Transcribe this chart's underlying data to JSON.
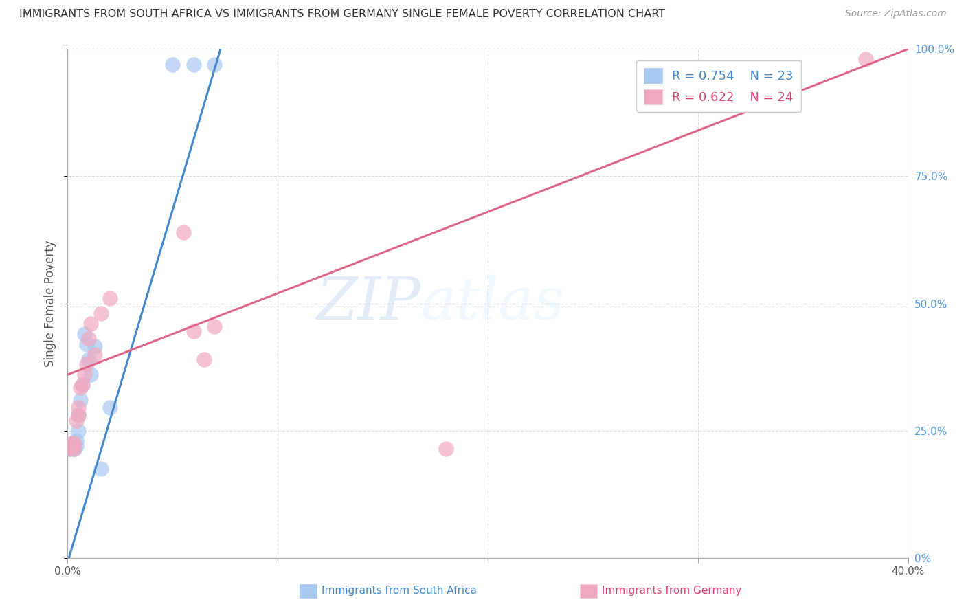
{
  "title": "IMMIGRANTS FROM SOUTH AFRICA VS IMMIGRANTS FROM GERMANY SINGLE FEMALE POVERTY CORRELATION CHART",
  "source": "Source: ZipAtlas.com",
  "ylabel": "Single Female Poverty",
  "legend_label_1": "Immigrants from South Africa",
  "legend_label_2": "Immigrants from Germany",
  "legend_r1": "R = 0.754",
  "legend_n1": "N = 23",
  "legend_r2": "R = 0.622",
  "legend_n2": "N = 24",
  "color_blue": "#a8c8f0",
  "color_pink": "#f0a8c0",
  "color_blue_line": "#4488cc",
  "color_pink_line": "#dd6688",
  "color_blue_text": "#4488cc",
  "color_pink_text": "#dd4477",
  "color_right_axis": "#5599dd",
  "xlim": [
    0.0,
    0.4
  ],
  "ylim": [
    0.0,
    1.0
  ],
  "south_africa_x": [
    0.001,
    0.001,
    0.002,
    0.002,
    0.003,
    0.003,
    0.003,
    0.004,
    0.004,
    0.005,
    0.005,
    0.006,
    0.007,
    0.008,
    0.009,
    0.01,
    0.011,
    0.013,
    0.016,
    0.02,
    0.05,
    0.06,
    0.07
  ],
  "south_africa_y": [
    0.215,
    0.22,
    0.215,
    0.225,
    0.215,
    0.22,
    0.225,
    0.22,
    0.23,
    0.25,
    0.28,
    0.31,
    0.34,
    0.44,
    0.42,
    0.39,
    0.36,
    0.415,
    0.175,
    0.295,
    0.97,
    0.97,
    0.97
  ],
  "germany_x": [
    0.001,
    0.001,
    0.002,
    0.002,
    0.003,
    0.003,
    0.004,
    0.005,
    0.005,
    0.006,
    0.007,
    0.008,
    0.009,
    0.01,
    0.011,
    0.013,
    0.016,
    0.02,
    0.055,
    0.06,
    0.065,
    0.07,
    0.18,
    0.38
  ],
  "germany_y": [
    0.215,
    0.22,
    0.22,
    0.225,
    0.215,
    0.225,
    0.27,
    0.28,
    0.295,
    0.335,
    0.34,
    0.36,
    0.38,
    0.43,
    0.46,
    0.4,
    0.48,
    0.51,
    0.64,
    0.445,
    0.39,
    0.455,
    0.215,
    0.98
  ],
  "blue_line_x": [
    -0.003,
    0.08
  ],
  "blue_line_y": [
    -0.05,
    1.1
  ],
  "pink_line_x": [
    0.0,
    0.4
  ],
  "pink_line_y": [
    0.36,
    1.0
  ],
  "watermark_zip": "ZIP",
  "watermark_atlas": "atlas",
  "background_color": "#ffffff",
  "grid_color": "#d8d8d8"
}
